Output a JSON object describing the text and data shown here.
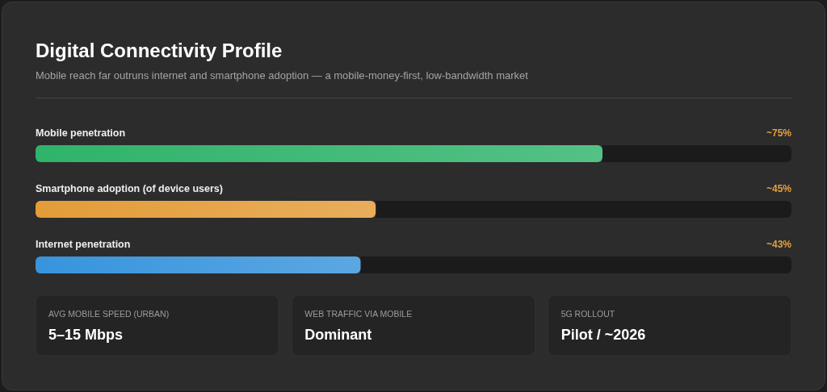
{
  "chart_data": [
    {
      "type": "bar",
      "orientation": "horizontal",
      "title": "Digital Connectivity Profile",
      "subtitle": "Mobile reach far outruns internet and smartphone adoption — a mobile-money-first, low-bandwidth market",
      "categories": [
        "Mobile penetration",
        "Smartphone adoption (of device users)",
        "Internet penetration"
      ],
      "values": [
        75,
        45,
        43
      ],
      "colors": [
        "#2fb36a",
        "#e39c38",
        "#3794dc"
      ],
      "xlim": [
        0,
        100
      ],
      "value_labels": [
        "~75%",
        "~45%",
        "~43%"
      ],
      "tick_labels": "y"
    },
    {
      "type": "other",
      "title": "AVG MOBILE SPEED (URBAN)",
      "annotations": [
        "5–15 Mbps"
      ]
    },
    {
      "type": "other",
      "title": "WEB TRAFFIC VIA MOBILE",
      "annotations": [
        "Dominant"
      ]
    },
    {
      "type": "other",
      "title": "5G ROLLOUT",
      "annotations": [
        "Pilot / ~2026"
      ]
    }
  ]
}
